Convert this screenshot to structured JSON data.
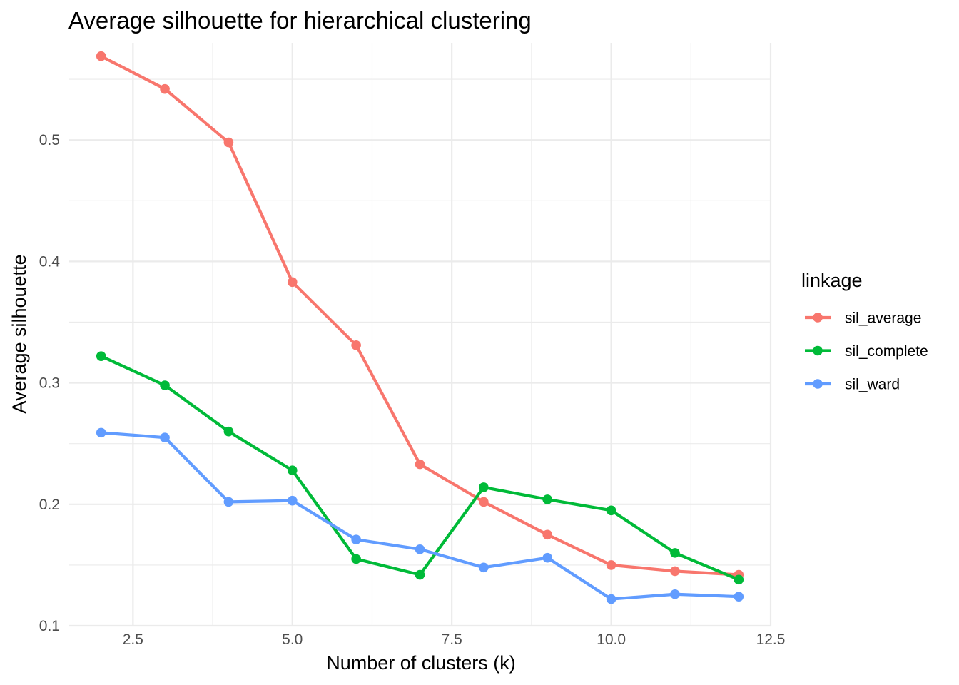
{
  "chart_data": {
    "type": "line",
    "title": "Average silhouette for hierarchical clustering",
    "xlabel": "Number of clusters (k)",
    "ylabel": "Average silhouette",
    "x": [
      2,
      3,
      4,
      5,
      6,
      7,
      8,
      9,
      10,
      11,
      12
    ],
    "xlim": [
      1.5,
      12.5
    ],
    "ylim": [
      0.1,
      0.58
    ],
    "x_ticks": [
      2.5,
      5.0,
      7.5,
      10.0,
      12.5
    ],
    "x_tick_labels": [
      "2.5",
      "5.0",
      "7.5",
      "10.0",
      "12.5"
    ],
    "y_ticks": [
      0.1,
      0.2,
      0.3,
      0.4,
      0.5
    ],
    "y_tick_labels": [
      "0.1",
      "0.2",
      "0.3",
      "0.4",
      "0.5"
    ],
    "grid": true,
    "legend": {
      "title": "linkage",
      "placement": "right"
    },
    "series": [
      {
        "name": "sil_average",
        "color": "#F8766D",
        "values": [
          0.569,
          0.542,
          0.498,
          0.383,
          0.331,
          0.233,
          0.202,
          0.175,
          0.15,
          0.145,
          0.142
        ]
      },
      {
        "name": "sil_complete",
        "color": "#00BA38",
        "values": [
          0.322,
          0.298,
          0.26,
          0.228,
          0.155,
          0.142,
          0.214,
          0.204,
          0.195,
          0.16,
          0.138
        ]
      },
      {
        "name": "sil_ward",
        "color": "#619CFF",
        "values": [
          0.259,
          0.255,
          0.202,
          0.203,
          0.171,
          0.163,
          0.148,
          0.156,
          0.122,
          0.126,
          0.124
        ]
      }
    ]
  }
}
